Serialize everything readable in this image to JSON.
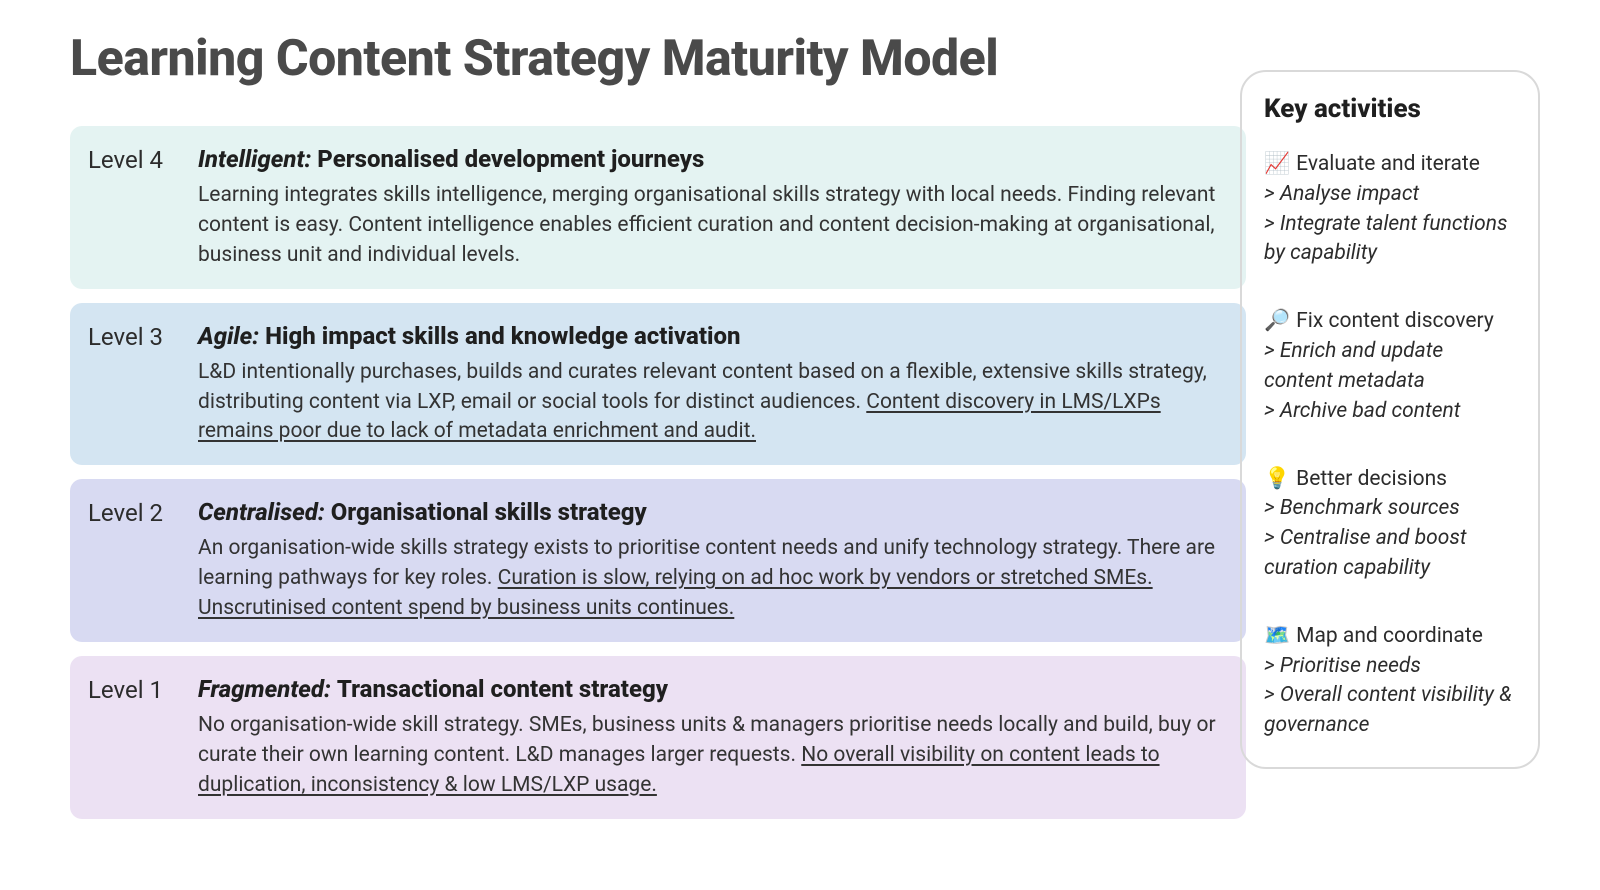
{
  "title": "Learning Content Strategy Maturity Model",
  "title_color": "#4a4a4a",
  "title_fontsize": 50,
  "background_color": "#ffffff",
  "body_text_color": "#333333",
  "activities_panel": {
    "title": "Key activities",
    "border_color": "#d9d9d9",
    "border_radius": 26
  },
  "levels": [
    {
      "label": "Level 4",
      "tag": "Intelligent:",
      "heading": "Personalised development journeys",
      "desc_plain": "Learning integrates skills intelligence, merging organisational skills strategy with local needs. Finding relevant content is easy. Content intelligence enables efficient curation and content decision-making at organisational, business unit and individual levels.",
      "desc_underlined": "",
      "bg_color": "#e4f3f2",
      "activity": {
        "icon": "📈",
        "main": "Evaluate and iterate",
        "subs": [
          "Analyse impact",
          "Integrate talent functions by capability"
        ]
      }
    },
    {
      "label": "Level 3",
      "tag": "Agile:",
      "heading": "High impact skills and knowledge activation",
      "desc_plain": "L&D intentionally purchases, builds and curates relevant content based on a flexible, extensive skills strategy, distributing content via LXP, email or social tools for distinct audiences. ",
      "desc_underlined": "Content discovery in LMS/LXPs remains poor due to lack of metadata enrichment and audit.",
      "bg_color": "#d4e5f2",
      "activity": {
        "icon": "🔎",
        "main": "Fix content discovery",
        "subs": [
          "Enrich and update content metadata",
          "Archive bad content"
        ]
      }
    },
    {
      "label": "Level 2",
      "tag": "Centralised:",
      "heading": "Organisational skills strategy",
      "desc_plain": "An organisation-wide skills strategy exists to prioritise content needs and unify technology strategy. There are learning pathways for key roles. ",
      "desc_underlined": "Curation is slow, relying on ad hoc work by vendors or stretched SMEs. Unscrutinised content spend by business units continues.",
      "bg_color": "#d8daf2",
      "activity": {
        "icon": "💡",
        "main": "Better decisions",
        "subs": [
          "Benchmark sources",
          "Centralise and boost curation capability"
        ]
      }
    },
    {
      "label": "Level 1",
      "tag": "Fragmented:",
      "heading": "Transactional content strategy",
      "desc_plain": "No organisation-wide skill strategy. SMEs, business units & managers prioritise needs locally and build, buy or curate their own learning content. L&D manages larger requests. ",
      "desc_underlined": "No overall visibility on content leads to duplication, inconsistency & low LMS/LXP usage.",
      "bg_color": "#ece1f3",
      "activity": {
        "icon": "🗺️",
        "main": "Map and coordinate",
        "subs": [
          "Prioritise needs",
          "Overall content visibility & governance"
        ]
      }
    }
  ]
}
